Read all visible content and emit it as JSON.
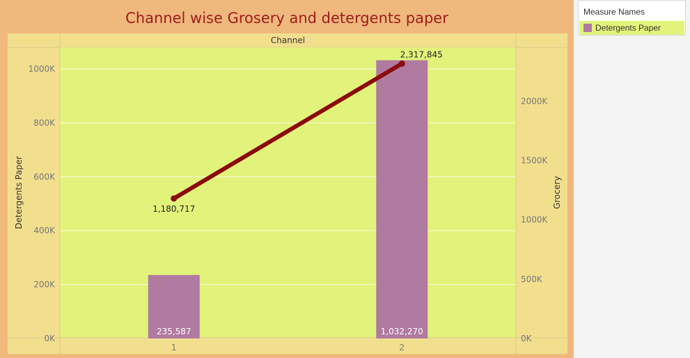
{
  "chart_data": {
    "type": "bar",
    "title": "Channel wise Grosery and detergents paper",
    "column_header": "Channel",
    "categories": [
      "1",
      "2"
    ],
    "series": [
      {
        "name": "Detergents Paper",
        "type": "bar",
        "axis": "left",
        "values": [
          235587,
          1032270
        ],
        "labels": [
          "235,587",
          "1,032,270"
        ],
        "color": "#b07aa1"
      },
      {
        "type": "line",
        "axis": "right",
        "values": [
          1180717,
          2317845
        ],
        "labels": [
          "1,180,717",
          "2,317,845"
        ],
        "color": "#8b0a0a"
      }
    ],
    "y_left": {
      "label": "Detergents Paper",
      "ylim": [
        0,
        1080000
      ],
      "ticks": [
        0,
        200000,
        400000,
        600000,
        800000,
        1000000
      ],
      "tick_labels": [
        "0K",
        "200K",
        "400K",
        "600K",
        "800K",
        "1000K"
      ]
    },
    "y_right": {
      "label": "Grocery",
      "ylim": [
        0,
        2455000
      ],
      "ticks": [
        0,
        500000,
        1000000,
        1500000,
        2000000
      ],
      "tick_labels": [
        "0K",
        "500K",
        "1000K",
        "1500K",
        "2000K"
      ]
    },
    "grid": true,
    "legend": {
      "title": "Measure Names",
      "items": [
        {
          "label": "Detergents Paper",
          "color": "#b07aa1"
        }
      ],
      "placement": "top-right"
    },
    "colors": {
      "plot_background": "#e2f37b",
      "frame_background": "#f2df8e",
      "dashboard_background": "#efb97d",
      "title_color": "#a01b1b"
    }
  }
}
